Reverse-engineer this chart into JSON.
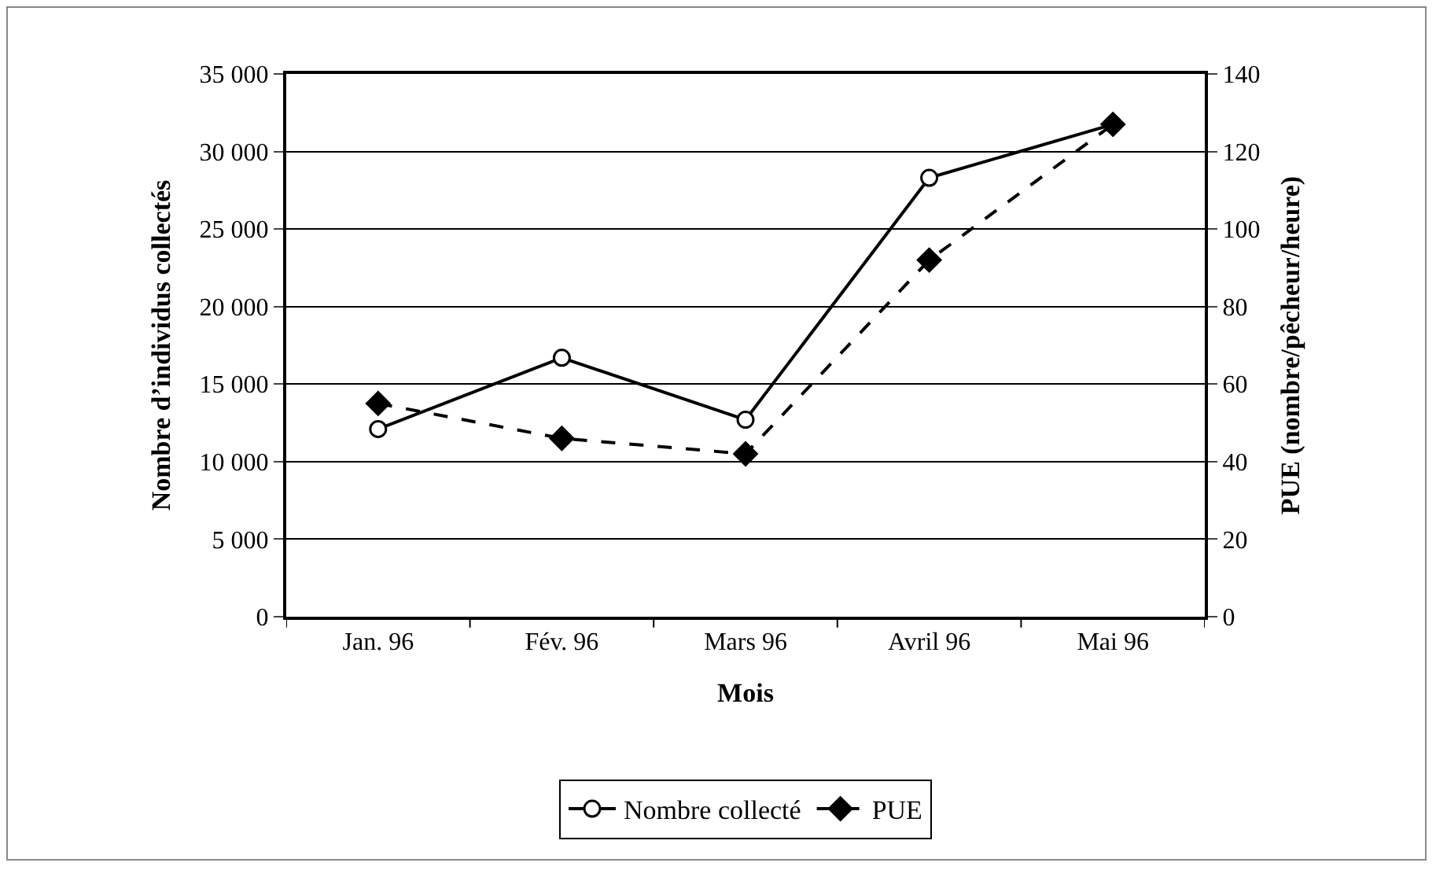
{
  "chart_data": {
    "type": "line",
    "xlabel": "Mois",
    "ylabel": "Nombre d’individus collectés",
    "y2label": "PUE (nombre/pêcheur/heure)",
    "categories": [
      "Jan. 96",
      "Fév. 96",
      "Mars 96",
      "Avril 96",
      "Mai 96"
    ],
    "series": [
      {
        "name": "Nombre collecté",
        "color": "#000000",
        "values": [
          12100,
          16700,
          12700,
          28300,
          31750
        ],
        "marker": "circle",
        "line_style": "solid"
      },
      {
        "name": "PUE",
        "color": "#000000",
        "values": [
          55,
          46,
          42,
          92,
          127
        ],
        "marker": "diamond",
        "line_style": "dashed",
        "axis": "y2"
      }
    ],
    "ylim": [
      0,
      35000
    ],
    "yticks": [
      0,
      {
        "value": 5000,
        "label": "5 000"
      },
      {
        "value": 10000,
        "label": "10 000"
      },
      {
        "value": 15000,
        "label": "15 000"
      },
      {
        "value": 20000,
        "label": "20 000"
      },
      {
        "value": 25000,
        "label": "25 000"
      },
      {
        "value": 30000,
        "label": "30 000"
      },
      {
        "value": 35000,
        "label": "35 000"
      }
    ],
    "y2lim": [
      0,
      140
    ],
    "y2ticks": [
      0,
      20,
      40,
      60,
      80,
      100,
      120,
      140
    ],
    "grid": "y",
    "legend": "bottom"
  }
}
